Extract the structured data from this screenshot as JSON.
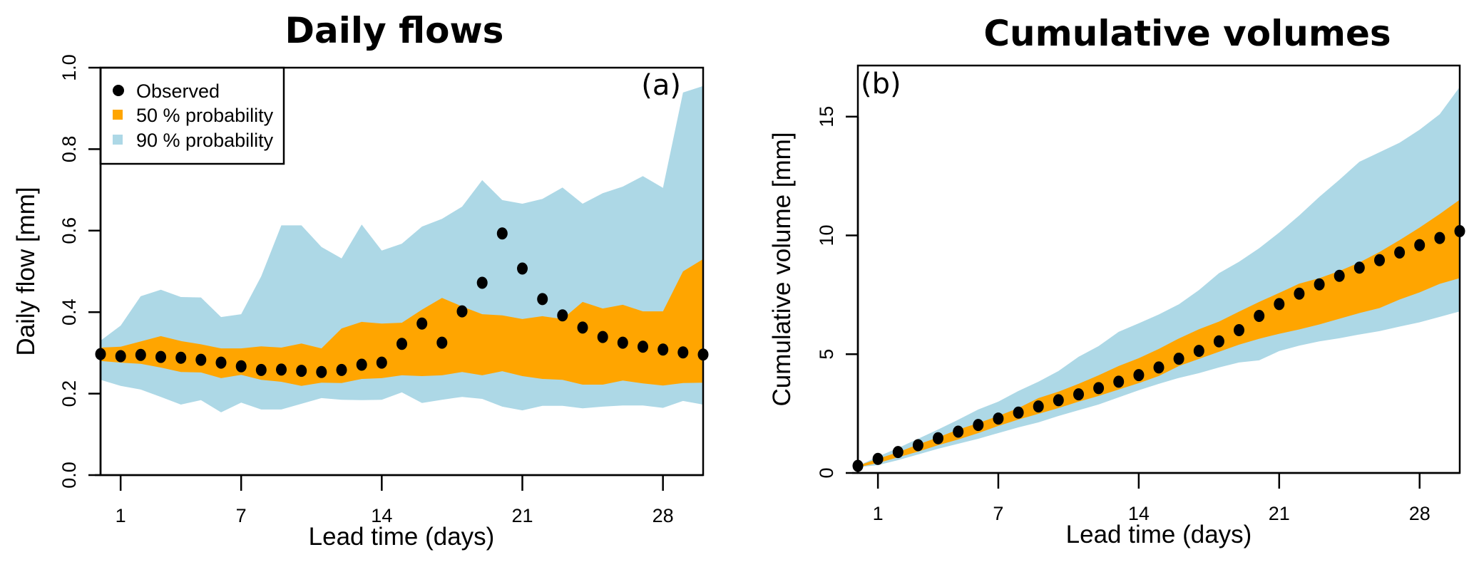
{
  "chart_data": [
    {
      "id": "a",
      "type": "area",
      "title": "Daily flows",
      "panel_label": "(a)",
      "xlabel": "Lead time (days)",
      "ylabel": "Daily flow [mm]",
      "xlim": [
        0,
        30
      ],
      "ylim": [
        0,
        1
      ],
      "x_ticks": [
        1,
        7,
        14,
        21,
        28
      ],
      "x_tick_labels": [
        "1",
        "7",
        "14",
        "21",
        "28"
      ],
      "y_ticks": [
        0,
        0.2,
        0.4,
        0.6,
        0.8,
        1.0
      ],
      "y_tick_labels": [
        "0.0",
        "0.2",
        "0.4",
        "0.6",
        "0.8",
        "1.0"
      ],
      "grid": false,
      "legend": {
        "placement": "top-left",
        "entries": [
          {
            "label": "Observed",
            "marker": "circle",
            "color": "#000000"
          },
          {
            "label": "50 % probability",
            "marker": "square",
            "color": "#FFA500"
          },
          {
            "label": "90 % probability",
            "marker": "square",
            "color": "#ADD8E6"
          }
        ]
      },
      "x": [
        0,
        1,
        2,
        3,
        4,
        5,
        6,
        7,
        8,
        9,
        10,
        11,
        12,
        13,
        14,
        15,
        16,
        17,
        18,
        19,
        20,
        21,
        22,
        23,
        24,
        25,
        26,
        27,
        28,
        29,
        30
      ],
      "series": [
        {
          "name": "90 % probability upper",
          "color": "#ADD8E6",
          "values": [
            0.33,
            0.367,
            0.439,
            0.455,
            0.437,
            0.436,
            0.388,
            0.395,
            0.488,
            0.613,
            0.613,
            0.56,
            0.532,
            0.615,
            0.551,
            0.568,
            0.61,
            0.629,
            0.659,
            0.724,
            0.675,
            0.666,
            0.678,
            0.706,
            0.666,
            0.692,
            0.708,
            0.734,
            0.705,
            0.939,
            0.955
          ]
        },
        {
          "name": "90 % probability lower",
          "color": "#ADD8E6",
          "values": [
            0.234,
            0.219,
            0.21,
            0.192,
            0.173,
            0.184,
            0.154,
            0.178,
            0.161,
            0.161,
            0.175,
            0.189,
            0.185,
            0.184,
            0.185,
            0.203,
            0.177,
            0.185,
            0.192,
            0.187,
            0.168,
            0.159,
            0.17,
            0.17,
            0.164,
            0.168,
            0.171,
            0.171,
            0.165,
            0.182,
            0.173
          ]
        },
        {
          "name": "50 % probability upper",
          "color": "#FFA500",
          "values": [
            0.313,
            0.315,
            0.328,
            0.341,
            0.329,
            0.321,
            0.311,
            0.311,
            0.316,
            0.313,
            0.323,
            0.311,
            0.36,
            0.376,
            0.372,
            0.374,
            0.406,
            0.435,
            0.414,
            0.395,
            0.392,
            0.383,
            0.39,
            0.383,
            0.425,
            0.409,
            0.418,
            0.402,
            0.402,
            0.5,
            0.53
          ]
        },
        {
          "name": "50 % probability lower",
          "color": "#FFA500",
          "values": [
            0.28,
            0.276,
            0.273,
            0.264,
            0.253,
            0.252,
            0.238,
            0.246,
            0.234,
            0.229,
            0.219,
            0.227,
            0.226,
            0.236,
            0.238,
            0.245,
            0.243,
            0.245,
            0.253,
            0.245,
            0.255,
            0.243,
            0.236,
            0.234,
            0.222,
            0.222,
            0.232,
            0.225,
            0.22,
            0.226,
            0.227
          ]
        },
        {
          "name": "Observed",
          "color": "#000000",
          "values": [
            0.297,
            0.292,
            0.295,
            0.29,
            0.288,
            0.283,
            0.276,
            0.267,
            0.258,
            0.259,
            0.256,
            0.253,
            0.258,
            0.271,
            0.276,
            0.322,
            0.372,
            0.325,
            0.402,
            0.472,
            0.593,
            0.507,
            0.432,
            0.392,
            0.362,
            0.339,
            0.325,
            0.315,
            0.308,
            0.301,
            0.296
          ]
        }
      ]
    },
    {
      "id": "b",
      "type": "area",
      "title": "Cumulative volumes",
      "panel_label": "(b)",
      "xlabel": "Lead time (days)",
      "ylabel": "Cumulative volume [mm]",
      "xlim": [
        0,
        30
      ],
      "ylim": [
        0,
        17.15
      ],
      "x_ticks": [
        1,
        7,
        14,
        21,
        28
      ],
      "x_tick_labels": [
        "1",
        "7",
        "14",
        "21",
        "28"
      ],
      "y_ticks": [
        0,
        5,
        10,
        15
      ],
      "y_tick_labels": [
        "0",
        "5",
        "10",
        "15"
      ],
      "grid": false,
      "x": [
        0,
        1,
        2,
        3,
        4,
        5,
        6,
        7,
        8,
        9,
        10,
        11,
        12,
        13,
        14,
        15,
        16,
        17,
        18,
        19,
        20,
        21,
        22,
        23,
        24,
        25,
        26,
        27,
        28,
        29,
        30
      ],
      "series": [
        {
          "name": "90 % probability upper",
          "color": "#ADD8E6",
          "values": [
            0.3,
            0.69,
            1.05,
            1.44,
            1.83,
            2.24,
            2.67,
            3.0,
            3.45,
            3.84,
            4.29,
            4.89,
            5.34,
            5.94,
            6.3,
            6.67,
            7.1,
            7.7,
            8.41,
            8.89,
            9.46,
            10.12,
            10.84,
            11.62,
            12.34,
            13.1,
            13.5,
            13.9,
            14.45,
            15.1,
            16.25
          ]
        },
        {
          "name": "90 % probability lower",
          "color": "#ADD8E6",
          "values": [
            0.24,
            0.33,
            0.54,
            0.78,
            1.02,
            1.23,
            1.44,
            1.68,
            1.92,
            2.13,
            2.4,
            2.64,
            2.88,
            3.18,
            3.48,
            3.75,
            4.0,
            4.2,
            4.44,
            4.65,
            4.74,
            5.13,
            5.36,
            5.54,
            5.67,
            5.83,
            5.97,
            6.16,
            6.34,
            6.57,
            6.8
          ]
        },
        {
          "name": "50 % probability upper",
          "color": "#FFA500",
          "values": [
            0.3,
            0.6,
            0.87,
            1.2,
            1.5,
            1.83,
            2.1,
            2.4,
            2.73,
            3.15,
            3.42,
            3.75,
            4.11,
            4.5,
            4.83,
            5.22,
            5.66,
            6.05,
            6.37,
            6.79,
            7.2,
            7.58,
            7.97,
            8.2,
            8.5,
            8.86,
            9.3,
            9.8,
            10.33,
            10.9,
            11.5
          ]
        },
        {
          "name": "50 % probability lower",
          "color": "#FFA500",
          "values": [
            0.24,
            0.42,
            0.66,
            0.9,
            1.17,
            1.41,
            1.68,
            1.98,
            2.25,
            2.49,
            2.73,
            3.0,
            3.24,
            3.51,
            3.78,
            4.08,
            4.5,
            4.8,
            5.1,
            5.4,
            5.65,
            5.86,
            6.04,
            6.25,
            6.49,
            6.73,
            6.94,
            7.3,
            7.6,
            7.96,
            8.2
          ]
        },
        {
          "name": "Observed",
          "color": "#000000",
          "values": [
            0.3,
            0.59,
            0.88,
            1.17,
            1.46,
            1.74,
            2.02,
            2.29,
            2.54,
            2.8,
            3.06,
            3.31,
            3.57,
            3.84,
            4.12,
            4.44,
            4.81,
            5.14,
            5.54,
            6.01,
            6.61,
            7.11,
            7.55,
            7.94,
            8.3,
            8.64,
            8.96,
            9.28,
            9.59,
            9.89,
            10.18
          ]
        }
      ]
    }
  ]
}
